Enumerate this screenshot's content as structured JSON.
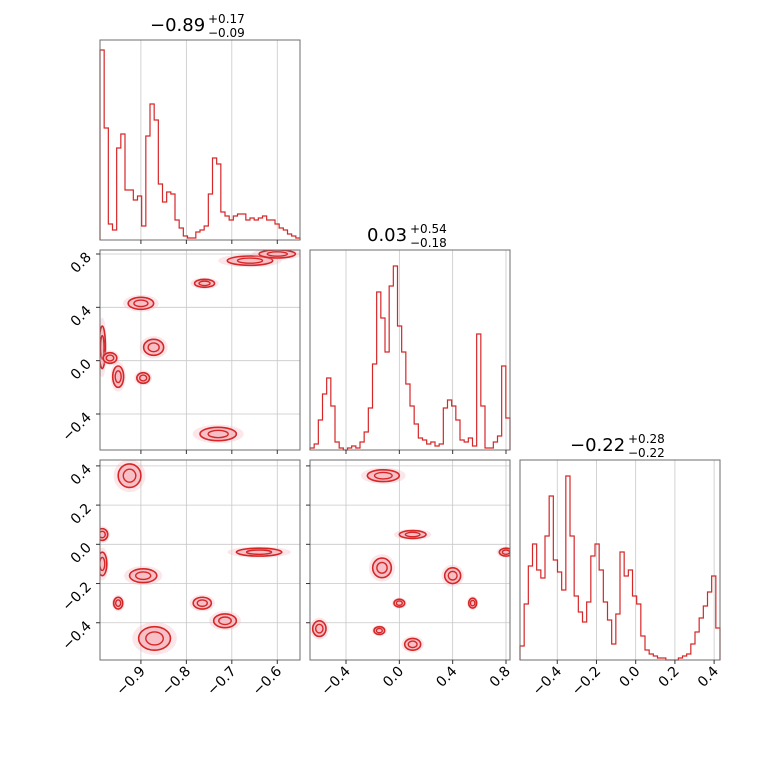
{
  "figure": {
    "accent_color": "#d62728",
    "contour_fill": "#f4b8bf"
  },
  "titles": [
    {
      "main": "−0.89",
      "plus": "+0.17",
      "minus": "−0.09"
    },
    {
      "main": "0.03",
      "plus": "+0.54",
      "minus": "−0.18"
    },
    {
      "main": "−0.22",
      "plus": "+0.28",
      "minus": "−0.22"
    }
  ],
  "chart_data": {
    "type": "corner",
    "grid": true,
    "params": [
      {
        "range": [
          -0.99,
          -0.55
        ],
        "ticks": [
          -0.9,
          -0.8,
          -0.7,
          -0.6
        ],
        "tick_labels": [
          "−0.9",
          "−0.8",
          "−0.7",
          "−0.6"
        ]
      },
      {
        "range": [
          -0.67,
          0.83
        ],
        "ticks": [
          -0.4,
          0.0,
          0.4,
          0.8
        ],
        "tick_labels": [
          "−0.4",
          "0.0",
          "0.4",
          "0.8"
        ]
      },
      {
        "range": [
          -0.59,
          0.43
        ],
        "ticks": [
          -0.4,
          -0.2,
          0.0,
          0.2,
          0.4
        ],
        "tick_labels": [
          "−0.4",
          "−0.2",
          "0.0",
          "0.2",
          "0.4"
        ]
      }
    ],
    "histograms": [
      {
        "param": 0,
        "bins": 48,
        "counts": [
          0.95,
          0.56,
          0.08,
          0.05,
          0.46,
          0.53,
          0.25,
          0.25,
          0.2,
          0.22,
          0.07,
          0.52,
          0.68,
          0.6,
          0.28,
          0.19,
          0.24,
          0.23,
          0.1,
          0.06,
          0.02,
          0.01,
          0.01,
          0.04,
          0.05,
          0.07,
          0.23,
          0.41,
          0.38,
          0.14,
          0.12,
          0.1,
          0.12,
          0.13,
          0.13,
          0.1,
          0.11,
          0.1,
          0.11,
          0.12,
          0.1,
          0.1,
          0.08,
          0.06,
          0.05,
          0.03,
          0.02,
          0.01
        ]
      },
      {
        "param": 1,
        "bins": 48,
        "counts": [
          0.01,
          0.03,
          0.15,
          0.28,
          0.36,
          0.22,
          0.04,
          0.01,
          0.0,
          0.01,
          0.02,
          0.01,
          0.04,
          0.09,
          0.21,
          0.43,
          0.79,
          0.66,
          0.49,
          0.82,
          0.92,
          0.62,
          0.49,
          0.33,
          0.22,
          0.13,
          0.06,
          0.05,
          0.03,
          0.04,
          0.02,
          0.03,
          0.21,
          0.25,
          0.22,
          0.15,
          0.05,
          0.04,
          0.06,
          0.02,
          0.58,
          0.22,
          0.01,
          0.01,
          0.04,
          0.07,
          0.42,
          0.16
        ]
      },
      {
        "param": 2,
        "bins": 48,
        "counts": [
          0.07,
          0.28,
          0.47,
          0.58,
          0.45,
          0.41,
          0.62,
          0.82,
          0.5,
          0.44,
          0.35,
          0.92,
          0.62,
          0.32,
          0.24,
          0.19,
          0.29,
          0.52,
          0.58,
          0.45,
          0.29,
          0.2,
          0.08,
          0.23,
          0.54,
          0.42,
          0.45,
          0.32,
          0.28,
          0.12,
          0.05,
          0.03,
          0.02,
          0.01,
          0.01,
          0.0,
          0.0,
          0.0,
          0.01,
          0.02,
          0.03,
          0.08,
          0.14,
          0.21,
          0.27,
          0.34,
          0.42,
          0.16
        ]
      }
    ],
    "pairs": [
      {
        "x_param": 0,
        "y_param": 1,
        "blobs": [
          {
            "x": -0.985,
            "y": 0.1,
            "sx": 0.007,
            "sy": 0.16
          },
          {
            "x": -0.968,
            "y": 0.02,
            "sx": 0.015,
            "sy": 0.04
          },
          {
            "x": -0.95,
            "y": -0.12,
            "sx": 0.012,
            "sy": 0.08
          },
          {
            "x": -0.9,
            "y": 0.43,
            "sx": 0.028,
            "sy": 0.045
          },
          {
            "x": -0.872,
            "y": 0.1,
            "sx": 0.022,
            "sy": 0.06
          },
          {
            "x": -0.895,
            "y": -0.13,
            "sx": 0.014,
            "sy": 0.04
          },
          {
            "x": -0.76,
            "y": 0.58,
            "sx": 0.022,
            "sy": 0.03
          },
          {
            "x": -0.73,
            "y": -0.55,
            "sx": 0.04,
            "sy": 0.05
          },
          {
            "x": -0.66,
            "y": 0.75,
            "sx": 0.05,
            "sy": 0.035
          },
          {
            "x": -0.6,
            "y": 0.8,
            "sx": 0.04,
            "sy": 0.03
          }
        ]
      },
      {
        "x_param": 0,
        "y_param": 2,
        "blobs": [
          {
            "x": -0.925,
            "y": 0.35,
            "sx": 0.025,
            "sy": 0.06
          },
          {
            "x": -0.985,
            "y": 0.05,
            "sx": 0.012,
            "sy": 0.03
          },
          {
            "x": -0.985,
            "y": -0.1,
            "sx": 0.01,
            "sy": 0.06
          },
          {
            "x": -0.95,
            "y": -0.3,
            "sx": 0.01,
            "sy": 0.03
          },
          {
            "x": -0.895,
            "y": -0.16,
            "sx": 0.03,
            "sy": 0.035
          },
          {
            "x": -0.87,
            "y": -0.48,
            "sx": 0.035,
            "sy": 0.06
          },
          {
            "x": -0.765,
            "y": -0.3,
            "sx": 0.02,
            "sy": 0.03
          },
          {
            "x": -0.715,
            "y": -0.39,
            "sx": 0.025,
            "sy": 0.035
          },
          {
            "x": -0.64,
            "y": -0.04,
            "sx": 0.05,
            "sy": 0.02
          }
        ]
      },
      {
        "x_param": 1,
        "y_param": 2,
        "blobs": [
          {
            "x": -0.12,
            "y": 0.35,
            "sx": 0.12,
            "sy": 0.03
          },
          {
            "x": 0.1,
            "y": 0.05,
            "sx": 0.1,
            "sy": 0.02
          },
          {
            "x": -0.6,
            "y": -0.43,
            "sx": 0.05,
            "sy": 0.04
          },
          {
            "x": -0.13,
            "y": -0.12,
            "sx": 0.07,
            "sy": 0.05
          },
          {
            "x": -0.15,
            "y": -0.44,
            "sx": 0.04,
            "sy": 0.02
          },
          {
            "x": 0.0,
            "y": -0.3,
            "sx": 0.04,
            "sy": 0.02
          },
          {
            "x": 0.1,
            "y": -0.51,
            "sx": 0.06,
            "sy": 0.03
          },
          {
            "x": 0.4,
            "y": -0.16,
            "sx": 0.06,
            "sy": 0.04
          },
          {
            "x": 0.55,
            "y": -0.3,
            "sx": 0.03,
            "sy": 0.025
          },
          {
            "x": 0.8,
            "y": -0.04,
            "sx": 0.05,
            "sy": 0.02
          }
        ]
      }
    ]
  }
}
